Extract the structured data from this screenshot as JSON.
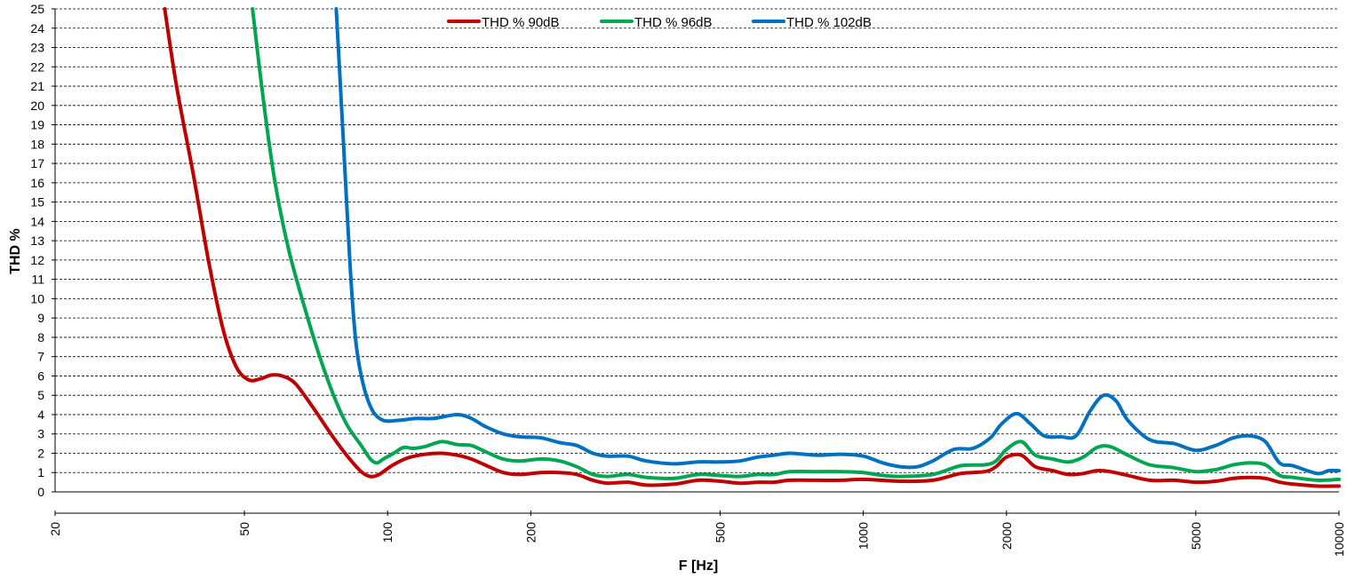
{
  "chart_data": {
    "type": "line",
    "xlabel": "F [Hz]",
    "ylabel": "THD %",
    "x_scale": "log",
    "xlim": [
      20,
      10000
    ],
    "ylim": [
      0,
      25
    ],
    "grid": true,
    "legend_position": "top-center",
    "x_ticks": [
      20,
      50,
      100,
      200,
      500,
      1000,
      2000,
      5000,
      10000
    ],
    "y_ticks": [
      0,
      1,
      2,
      3,
      4,
      5,
      6,
      7,
      8,
      9,
      10,
      11,
      12,
      13,
      14,
      15,
      16,
      17,
      18,
      19,
      20,
      21,
      22,
      23,
      24,
      25
    ],
    "series": [
      {
        "name": "THD % 90dB",
        "color": "#c00000",
        "points": [
          [
            34,
            25
          ],
          [
            36,
            21
          ],
          [
            39,
            16.5
          ],
          [
            42,
            12
          ],
          [
            45,
            8.5
          ],
          [
            48,
            6.5
          ],
          [
            51,
            5.8
          ],
          [
            54,
            5.85
          ],
          [
            57,
            6.05
          ],
          [
            60,
            6
          ],
          [
            64,
            5.6
          ],
          [
            70,
            4.3
          ],
          [
            76,
            3
          ],
          [
            82,
            1.9
          ],
          [
            88,
            1.05
          ],
          [
            92,
            0.8
          ],
          [
            96,
            0.9
          ],
          [
            102,
            1.35
          ],
          [
            110,
            1.75
          ],
          [
            120,
            1.95
          ],
          [
            130,
            2.0
          ],
          [
            140,
            1.9
          ],
          [
            150,
            1.7
          ],
          [
            160,
            1.4
          ],
          [
            175,
            1.0
          ],
          [
            190,
            0.9
          ],
          [
            210,
            1.0
          ],
          [
            230,
            1.0
          ],
          [
            250,
            0.9
          ],
          [
            270,
            0.6
          ],
          [
            290,
            0.45
          ],
          [
            320,
            0.5
          ],
          [
            350,
            0.35
          ],
          [
            400,
            0.4
          ],
          [
            450,
            0.6
          ],
          [
            500,
            0.55
          ],
          [
            550,
            0.45
          ],
          [
            600,
            0.5
          ],
          [
            650,
            0.5
          ],
          [
            700,
            0.6
          ],
          [
            800,
            0.6
          ],
          [
            900,
            0.6
          ],
          [
            1000,
            0.65
          ],
          [
            1200,
            0.55
          ],
          [
            1400,
            0.6
          ],
          [
            1600,
            0.95
          ],
          [
            1800,
            1.05
          ],
          [
            1900,
            1.3
          ],
          [
            2000,
            1.8
          ],
          [
            2150,
            1.9
          ],
          [
            2300,
            1.3
          ],
          [
            2500,
            1.1
          ],
          [
            2700,
            0.9
          ],
          [
            2900,
            0.95
          ],
          [
            3100,
            1.1
          ],
          [
            3300,
            1.05
          ],
          [
            3600,
            0.85
          ],
          [
            4000,
            0.6
          ],
          [
            4500,
            0.6
          ],
          [
            5000,
            0.5
          ],
          [
            5500,
            0.55
          ],
          [
            6000,
            0.7
          ],
          [
            6500,
            0.75
          ],
          [
            7000,
            0.7
          ],
          [
            7500,
            0.5
          ],
          [
            8000,
            0.4
          ],
          [
            9000,
            0.3
          ],
          [
            10000,
            0.3
          ]
        ]
      },
      {
        "name": "THD % 96dB",
        "color": "#00a651",
        "points": [
          [
            52,
            25
          ],
          [
            55,
            20
          ],
          [
            58,
            16
          ],
          [
            62,
            12.5
          ],
          [
            67,
            9.5
          ],
          [
            72,
            7
          ],
          [
            77,
            5
          ],
          [
            82,
            3.5
          ],
          [
            88,
            2.4
          ],
          [
            92,
            1.7
          ],
          [
            95,
            1.5
          ],
          [
            98,
            1.7
          ],
          [
            103,
            2.0
          ],
          [
            108,
            2.3
          ],
          [
            113,
            2.25
          ],
          [
            120,
            2.35
          ],
          [
            130,
            2.6
          ],
          [
            140,
            2.45
          ],
          [
            150,
            2.4
          ],
          [
            160,
            2.1
          ],
          [
            175,
            1.7
          ],
          [
            190,
            1.6
          ],
          [
            210,
            1.7
          ],
          [
            230,
            1.6
          ],
          [
            250,
            1.3
          ],
          [
            270,
            0.9
          ],
          [
            290,
            0.8
          ],
          [
            320,
            0.9
          ],
          [
            350,
            0.75
          ],
          [
            400,
            0.7
          ],
          [
            450,
            0.9
          ],
          [
            500,
            0.85
          ],
          [
            550,
            0.8
          ],
          [
            600,
            0.9
          ],
          [
            650,
            0.9
          ],
          [
            700,
            1.05
          ],
          [
            800,
            1.05
          ],
          [
            900,
            1.05
          ],
          [
            1000,
            1.0
          ],
          [
            1100,
            0.85
          ],
          [
            1200,
            0.8
          ],
          [
            1400,
            0.9
          ],
          [
            1600,
            1.35
          ],
          [
            1800,
            1.4
          ],
          [
            1900,
            1.6
          ],
          [
            2000,
            2.2
          ],
          [
            2150,
            2.6
          ],
          [
            2300,
            1.9
          ],
          [
            2500,
            1.7
          ],
          [
            2700,
            1.55
          ],
          [
            2900,
            1.8
          ],
          [
            3100,
            2.3
          ],
          [
            3300,
            2.35
          ],
          [
            3600,
            1.9
          ],
          [
            4000,
            1.4
          ],
          [
            4500,
            1.25
          ],
          [
            5000,
            1.05
          ],
          [
            5500,
            1.15
          ],
          [
            6000,
            1.4
          ],
          [
            6500,
            1.5
          ],
          [
            7000,
            1.4
          ],
          [
            7500,
            0.85
          ],
          [
            8000,
            0.75
          ],
          [
            9000,
            0.6
          ],
          [
            10000,
            0.65
          ]
        ]
      },
      {
        "name": "THD % 102dB",
        "color": "#0070c0",
        "points": [
          [
            78,
            25
          ],
          [
            80,
            20
          ],
          [
            82,
            15
          ],
          [
            84,
            10.5
          ],
          [
            86,
            7.5
          ],
          [
            89,
            5.5
          ],
          [
            93,
            4.2
          ],
          [
            98,
            3.7
          ],
          [
            105,
            3.7
          ],
          [
            115,
            3.8
          ],
          [
            125,
            3.8
          ],
          [
            140,
            4.0
          ],
          [
            150,
            3.8
          ],
          [
            160,
            3.4
          ],
          [
            175,
            3.0
          ],
          [
            190,
            2.85
          ],
          [
            210,
            2.8
          ],
          [
            230,
            2.55
          ],
          [
            250,
            2.4
          ],
          [
            270,
            2.0
          ],
          [
            290,
            1.85
          ],
          [
            320,
            1.85
          ],
          [
            350,
            1.6
          ],
          [
            400,
            1.45
          ],
          [
            450,
            1.55
          ],
          [
            500,
            1.55
          ],
          [
            550,
            1.6
          ],
          [
            600,
            1.8
          ],
          [
            650,
            1.9
          ],
          [
            700,
            2.0
          ],
          [
            800,
            1.9
          ],
          [
            900,
            1.95
          ],
          [
            1000,
            1.85
          ],
          [
            1100,
            1.5
          ],
          [
            1200,
            1.3
          ],
          [
            1300,
            1.3
          ],
          [
            1400,
            1.6
          ],
          [
            1550,
            2.2
          ],
          [
            1700,
            2.25
          ],
          [
            1850,
            2.8
          ],
          [
            1950,
            3.5
          ],
          [
            2100,
            4.05
          ],
          [
            2250,
            3.5
          ],
          [
            2400,
            2.9
          ],
          [
            2600,
            2.85
          ],
          [
            2800,
            2.9
          ],
          [
            3000,
            4.2
          ],
          [
            3200,
            5.0
          ],
          [
            3400,
            4.7
          ],
          [
            3600,
            3.7
          ],
          [
            4000,
            2.7
          ],
          [
            4500,
            2.5
          ],
          [
            5000,
            2.15
          ],
          [
            5500,
            2.4
          ],
          [
            6000,
            2.8
          ],
          [
            6500,
            2.9
          ],
          [
            7000,
            2.6
          ],
          [
            7500,
            1.5
          ],
          [
            8000,
            1.35
          ],
          [
            9000,
            0.95
          ],
          [
            9500,
            1.1
          ],
          [
            10000,
            1.1
          ]
        ]
      }
    ]
  }
}
